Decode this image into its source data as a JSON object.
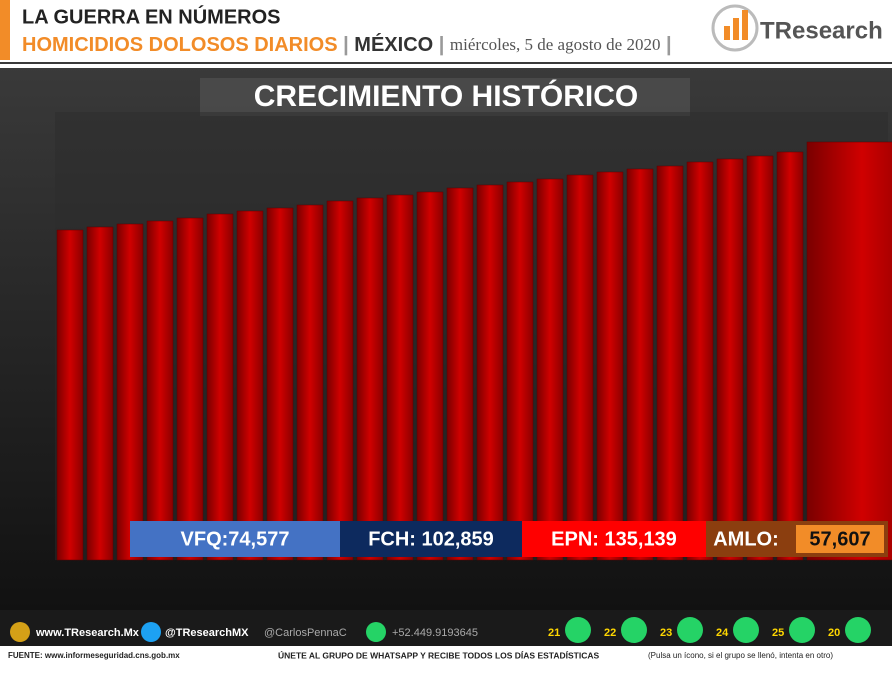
{
  "header": {
    "kicker": "LA GUERRA EN NÚMEROS",
    "topic": "HOMICIDIOS DOLOSOS DIARIOS",
    "country": "MÉXICO",
    "date": "miércoles, 5 de agosto de 2020",
    "logo": "TResearch"
  },
  "chart_data": {
    "type": "bar",
    "title": "CRECIMIENTO HISTÓRICO",
    "values": [
      330,
      333,
      336,
      339,
      342,
      346,
      349,
      352,
      355,
      359,
      362,
      365,
      368,
      372,
      375,
      378,
      381,
      385,
      388,
      391,
      394,
      398,
      401,
      404,
      408,
      418
    ],
    "ylim": [
      0,
      448
    ],
    "color": "#c00000"
  },
  "periods": [
    {
      "text": "VFQ:74,577",
      "color": "#4472c4"
    },
    {
      "text": "FCH: 102,859",
      "color": "#0d2a5e"
    },
    {
      "text": "EPN: 135,139",
      "color": "#ff0000"
    },
    {
      "text": "AMLO:",
      "total": "57,607",
      "color": "#8b3e0f"
    }
  ],
  "footer": {
    "web": "www.TResearch.Mx",
    "twitter": "@TResearchMX",
    "twitter2": "@CarlosPennaC",
    "phone": "+52.449.9193645",
    "groups": [
      "21",
      "22",
      "23",
      "24",
      "25",
      "20"
    ],
    "source": "FUENTE: www.informeseguridad.cns.gob.mx",
    "join": "ÚNETE AL GRUPO DE WHATSAPP Y RECIBE TODOS LOS DÍAS ESTADÍSTICAS",
    "hint": "(Pulsa un ícono, si el grupo se llenó, intenta en otro)"
  }
}
